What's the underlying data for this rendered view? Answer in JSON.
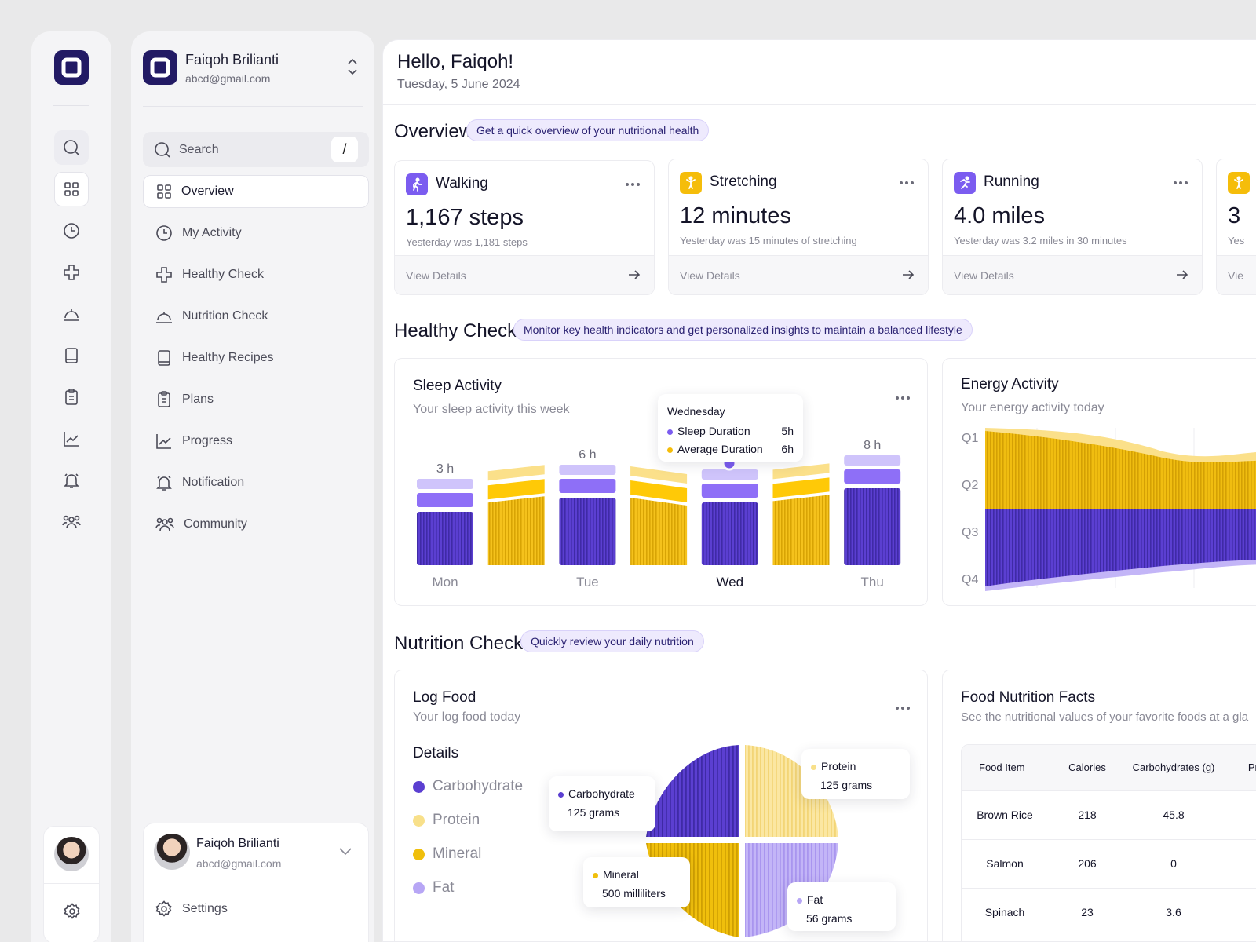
{
  "user": {
    "name": "Faiqoh Brilianti",
    "email": "abcd@gmail.com"
  },
  "search": {
    "placeholder": "Search",
    "shortcut": "/"
  },
  "nav": [
    {
      "label": "Overview",
      "icon": "grid-icon"
    },
    {
      "label": "My Activity",
      "icon": "clock-icon"
    },
    {
      "label": "Healthy Check",
      "icon": "medical-cross-icon"
    },
    {
      "label": "Nutrition Check",
      "icon": "cloche-icon"
    },
    {
      "label": "Healthy Recipes",
      "icon": "book-icon"
    },
    {
      "label": "Plans",
      "icon": "clipboard-icon"
    },
    {
      "label": "Progress",
      "icon": "chart-line-icon"
    },
    {
      "label": "Notification",
      "icon": "bell-icon"
    },
    {
      "label": "Community",
      "icon": "community-icon"
    }
  ],
  "settings_label": "Settings",
  "header": {
    "greeting": "Hello, Faiqoh!",
    "date": "Tuesday, 5 June 2024"
  },
  "overview": {
    "title": "Overview",
    "pill": "Get a quick overview of your nutritional health",
    "cards": [
      {
        "title": "Walking",
        "value": "1,167 steps",
        "sub": "Yesterday was 1,181 steps",
        "link": "View Details",
        "icon": "walking-icon",
        "color": "#7b5cf0"
      },
      {
        "title": "Stretching",
        "value": "12 minutes",
        "sub": "Yesterday was 15 minutes of stretching",
        "link": "View Details",
        "icon": "stretching-icon",
        "color": "#f5bd0a"
      },
      {
        "title": "Running",
        "value": "4.0 miles",
        "sub": "Yesterday was 3.2 miles in 30 minutes",
        "link": "View Details",
        "icon": "running-icon",
        "color": "#7b5cf0"
      },
      {
        "title": "",
        "value": "3",
        "sub": "Yes",
        "link": "Vie",
        "icon": "stretching-icon",
        "color": "#f5bd0a"
      }
    ]
  },
  "healthy": {
    "title": "Healthy Check",
    "pill": "Monitor key health indicators and get personalized insights to maintain a balanced lifestyle",
    "sleep": {
      "title": "Sleep Activity",
      "sub": "Your sleep activity this week"
    },
    "energy": {
      "title": "Energy Activity",
      "sub": "Your energy activity today"
    },
    "tooltip": {
      "day": "Wednesday",
      "sleep_label": "Sleep Duration",
      "sleep_val": "5h",
      "avg_label": "Average Duration",
      "avg_val": "6h"
    }
  },
  "chart_data": [
    {
      "type": "bar",
      "title": "Sleep Activity",
      "categories": [
        "Mon",
        "Tue",
        "Wed",
        "Thu"
      ],
      "bar_labels": [
        "3 h",
        "6 h",
        "",
        "8 h"
      ],
      "series": [
        {
          "name": "Sleep Duration",
          "values": [
            3,
            6,
            5,
            8
          ]
        },
        {
          "name": "Average Duration",
          "values": [
            null,
            null,
            6,
            null
          ]
        }
      ],
      "highlight": "Wed"
    },
    {
      "type": "area",
      "title": "Energy Activity",
      "categories": [
        "Q1",
        "Q2",
        "Q3",
        "Q4"
      ]
    },
    {
      "type": "pie",
      "title": "Log Food",
      "slices": [
        {
          "name": "Carbohydrate",
          "label": "125 grams",
          "color": "#5b3fd1"
        },
        {
          "name": "Protein",
          "label": "125 grams",
          "color": "#f8e08a"
        },
        {
          "name": "Mineral",
          "label": "500 milliliters",
          "color": "#f0bf0c"
        },
        {
          "name": "Fat",
          "label": "56 grams",
          "color": "#b7a6f5"
        }
      ]
    }
  ],
  "nutrition": {
    "title": "Nutrition Check",
    "pill": "Quickly review your daily nutrition",
    "log": {
      "title": "Log Food",
      "sub": "Your log food today",
      "details": "Details"
    },
    "facts": {
      "title": "Food Nutrition Facts",
      "sub": "See the nutritional values of your favorite foods at a gla",
      "headers": [
        "Food Item",
        "Calories",
        "Carbohydrates (g)",
        "Pro"
      ],
      "rows": [
        [
          "Brown Rice",
          "218",
          "45.8"
        ],
        [
          "Salmon",
          "206",
          "0"
        ],
        [
          "Spinach",
          "23",
          "3.6"
        ]
      ]
    }
  },
  "colors": {
    "accent": "#221a64",
    "purple": "#5b3fd1",
    "yellow": "#f5bd0a"
  }
}
